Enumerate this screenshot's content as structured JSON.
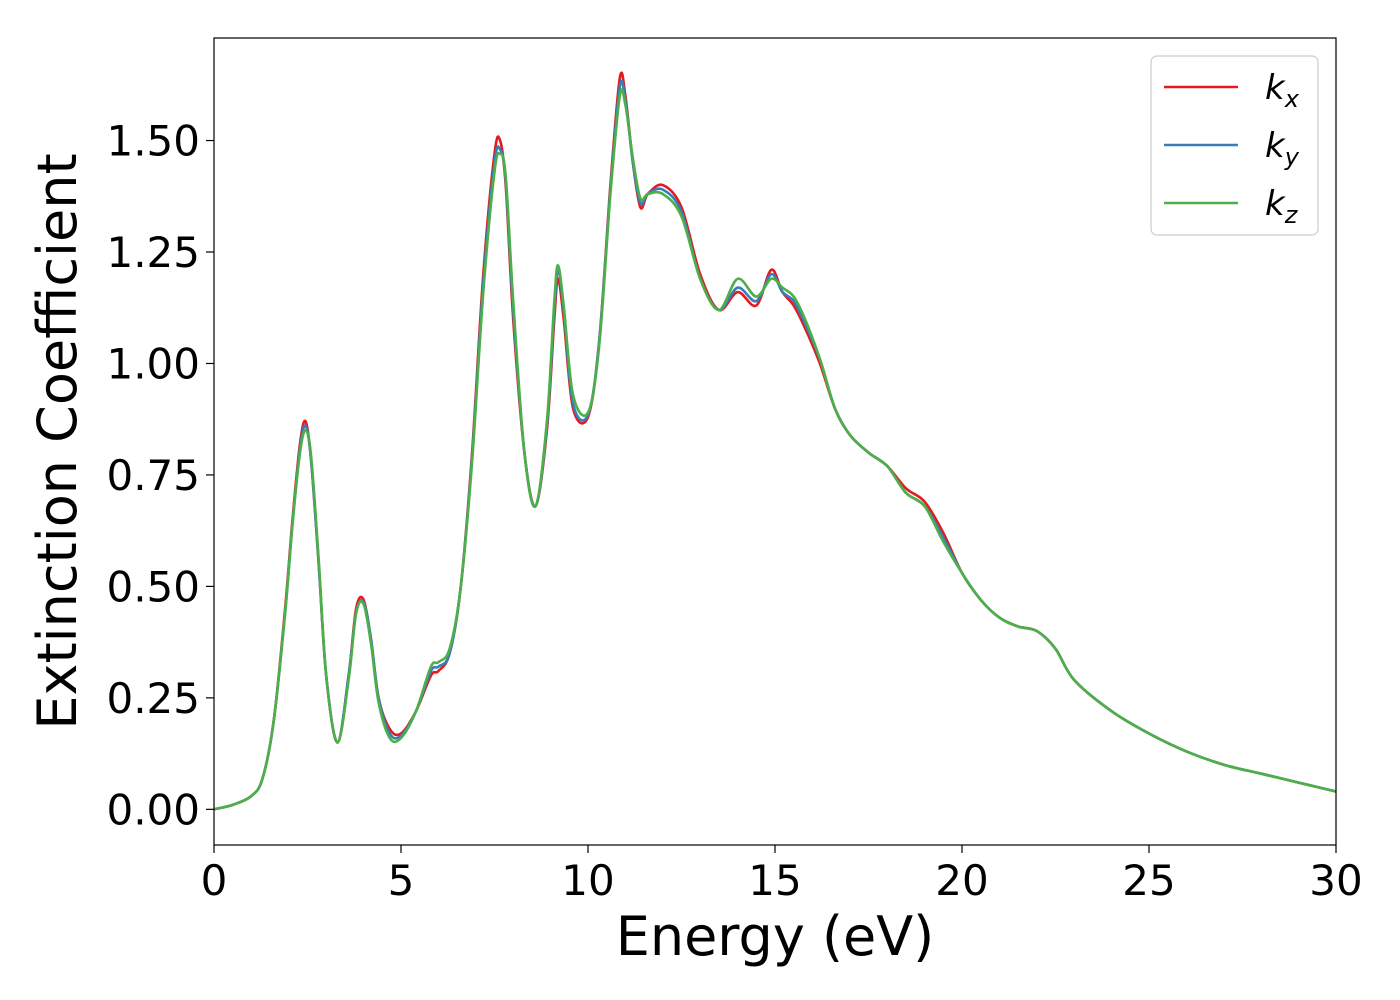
{
  "chart_data": {
    "type": "line",
    "xlabel": "Energy (eV)",
    "ylabel": "Extinction Coefficient",
    "xlim": [
      0,
      30
    ],
    "ylim": [
      -0.08,
      1.73
    ],
    "xticks": [
      0,
      5,
      10,
      15,
      20,
      25,
      30
    ],
    "xtick_labels": [
      "0",
      "5",
      "10",
      "15",
      "20",
      "25",
      "30"
    ],
    "yticks": [
      0.0,
      0.25,
      0.5,
      0.75,
      1.0,
      1.25,
      1.5
    ],
    "ytick_labels": [
      "0.00",
      "0.25",
      "0.50",
      "0.75",
      "1.00",
      "1.25",
      "1.50"
    ],
    "grid": false,
    "legend_position": "top-right",
    "series": [
      {
        "name": "k_x",
        "legend_base": "k",
        "legend_sub": "x",
        "color": "#e41a1c",
        "x": [
          0,
          0.5,
          1.0,
          1.3,
          1.6,
          1.9,
          2.1,
          2.3,
          2.45,
          2.6,
          2.8,
          3.0,
          3.3,
          3.6,
          3.8,
          4.0,
          4.2,
          4.4,
          4.7,
          5.0,
          5.4,
          5.8,
          6.0,
          6.3,
          6.6,
          6.9,
          7.2,
          7.5,
          7.65,
          7.8,
          8.0,
          8.3,
          8.6,
          8.9,
          9.1,
          9.2,
          9.35,
          9.6,
          10.0,
          10.3,
          10.6,
          10.85,
          11.0,
          11.2,
          11.4,
          11.6,
          12.0,
          12.5,
          13.0,
          13.5,
          14.0,
          14.5,
          14.9,
          15.2,
          15.5,
          15.8,
          16.2,
          16.6,
          17.0,
          17.5,
          18.0,
          18.5,
          19.0,
          19.5,
          20.0,
          20.5,
          21.0,
          21.5,
          22.0,
          22.5,
          23.0,
          24.0,
          25.0,
          26.0,
          27.0,
          28.0,
          29.0,
          30.0
        ],
        "y": [
          0.0,
          0.01,
          0.03,
          0.07,
          0.2,
          0.45,
          0.65,
          0.82,
          0.87,
          0.78,
          0.55,
          0.3,
          0.15,
          0.3,
          0.45,
          0.47,
          0.38,
          0.25,
          0.18,
          0.17,
          0.22,
          0.3,
          0.31,
          0.35,
          0.5,
          0.8,
          1.2,
          1.47,
          1.5,
          1.4,
          1.1,
          0.8,
          0.68,
          0.85,
          1.1,
          1.19,
          1.1,
          0.9,
          0.88,
          1.05,
          1.4,
          1.64,
          1.6,
          1.45,
          1.35,
          1.38,
          1.4,
          1.35,
          1.2,
          1.12,
          1.16,
          1.13,
          1.21,
          1.16,
          1.13,
          1.08,
          1.0,
          0.9,
          0.84,
          0.8,
          0.77,
          0.72,
          0.69,
          0.62,
          0.53,
          0.47,
          0.43,
          0.41,
          0.4,
          0.36,
          0.29,
          0.22,
          0.17,
          0.13,
          0.1,
          0.08,
          0.06,
          0.04
        ]
      },
      {
        "name": "k_y",
        "legend_base": "k",
        "legend_sub": "y",
        "color": "#377eb8",
        "x": [
          0,
          0.5,
          1.0,
          1.3,
          1.6,
          1.9,
          2.1,
          2.3,
          2.45,
          2.6,
          2.8,
          3.0,
          3.3,
          3.6,
          3.8,
          4.0,
          4.2,
          4.4,
          4.7,
          5.0,
          5.4,
          5.8,
          6.0,
          6.3,
          6.6,
          6.9,
          7.2,
          7.5,
          7.65,
          7.8,
          8.0,
          8.3,
          8.6,
          8.9,
          9.1,
          9.2,
          9.35,
          9.6,
          10.0,
          10.3,
          10.6,
          10.85,
          11.0,
          11.2,
          11.4,
          11.6,
          12.0,
          12.5,
          13.0,
          13.5,
          14.0,
          14.5,
          14.9,
          15.2,
          15.5,
          15.8,
          16.2,
          16.6,
          17.0,
          17.5,
          18.0,
          18.5,
          19.0,
          19.5,
          20.0,
          20.5,
          21.0,
          21.5,
          22.0,
          22.5,
          23.0,
          24.0,
          25.0,
          26.0,
          27.0,
          28.0,
          29.0,
          30.0
        ],
        "y": [
          0.0,
          0.01,
          0.03,
          0.07,
          0.2,
          0.44,
          0.64,
          0.81,
          0.86,
          0.78,
          0.55,
          0.3,
          0.15,
          0.3,
          0.44,
          0.465,
          0.38,
          0.25,
          0.17,
          0.165,
          0.22,
          0.31,
          0.32,
          0.35,
          0.5,
          0.79,
          1.18,
          1.45,
          1.48,
          1.41,
          1.12,
          0.8,
          0.68,
          0.86,
          1.12,
          1.21,
          1.12,
          0.91,
          0.885,
          1.05,
          1.39,
          1.62,
          1.59,
          1.45,
          1.36,
          1.38,
          1.39,
          1.34,
          1.19,
          1.12,
          1.17,
          1.14,
          1.2,
          1.16,
          1.14,
          1.09,
          1.01,
          0.9,
          0.84,
          0.8,
          0.77,
          0.71,
          0.68,
          0.61,
          0.53,
          0.47,
          0.43,
          0.41,
          0.4,
          0.36,
          0.29,
          0.22,
          0.17,
          0.13,
          0.1,
          0.08,
          0.06,
          0.04
        ]
      },
      {
        "name": "k_z",
        "legend_base": "k",
        "legend_sub": "z",
        "color": "#4daf4a",
        "x": [
          0,
          0.5,
          1.0,
          1.3,
          1.6,
          1.9,
          2.1,
          2.3,
          2.45,
          2.6,
          2.8,
          3.0,
          3.3,
          3.6,
          3.8,
          4.0,
          4.2,
          4.4,
          4.7,
          5.0,
          5.4,
          5.8,
          6.0,
          6.3,
          6.6,
          6.9,
          7.2,
          7.5,
          7.65,
          7.8,
          8.0,
          8.3,
          8.6,
          8.9,
          9.1,
          9.2,
          9.35,
          9.6,
          10.0,
          10.3,
          10.6,
          10.85,
          11.0,
          11.2,
          11.4,
          11.6,
          12.0,
          12.5,
          13.0,
          13.5,
          14.0,
          14.5,
          14.9,
          15.2,
          15.5,
          15.8,
          16.2,
          16.6,
          17.0,
          17.5,
          18.0,
          18.5,
          19.0,
          19.5,
          20.0,
          20.5,
          21.0,
          21.5,
          22.0,
          22.5,
          23.0,
          24.0,
          25.0,
          26.0,
          27.0,
          28.0,
          29.0,
          30.0
        ],
        "y": [
          0.0,
          0.01,
          0.03,
          0.07,
          0.2,
          0.44,
          0.64,
          0.8,
          0.85,
          0.79,
          0.56,
          0.3,
          0.15,
          0.29,
          0.44,
          0.46,
          0.37,
          0.24,
          0.16,
          0.16,
          0.22,
          0.32,
          0.33,
          0.36,
          0.5,
          0.78,
          1.16,
          1.43,
          1.47,
          1.42,
          1.14,
          0.8,
          0.68,
          0.87,
          1.14,
          1.22,
          1.13,
          0.93,
          0.89,
          1.04,
          1.38,
          1.6,
          1.58,
          1.46,
          1.37,
          1.38,
          1.38,
          1.33,
          1.19,
          1.12,
          1.19,
          1.15,
          1.19,
          1.17,
          1.15,
          1.1,
          1.01,
          0.9,
          0.84,
          0.8,
          0.77,
          0.71,
          0.68,
          0.6,
          0.53,
          0.47,
          0.43,
          0.41,
          0.4,
          0.36,
          0.29,
          0.22,
          0.17,
          0.13,
          0.1,
          0.08,
          0.06,
          0.04
        ]
      }
    ]
  }
}
